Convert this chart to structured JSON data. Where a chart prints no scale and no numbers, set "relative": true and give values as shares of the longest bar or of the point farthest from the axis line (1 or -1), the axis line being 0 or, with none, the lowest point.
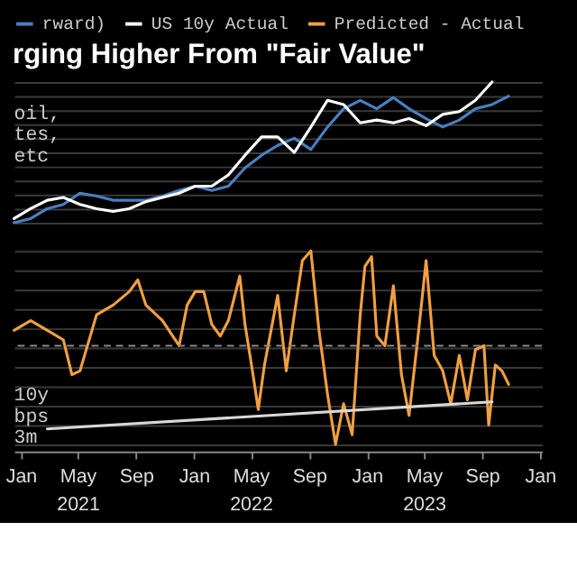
{
  "chart_data": [
    {
      "type": "line",
      "title": "rging Higher From \"Fair Value\"",
      "relative": true,
      "legend": "top",
      "grid": "y",
      "tick_labels": false,
      "xlim": [
        "2020-12-18",
        "2024-01-05"
      ],
      "x": [
        "2020-12-18",
        "2021-01-22",
        "2021-02-26",
        "2021-04-01",
        "2021-05-06",
        "2021-06-10",
        "2021-07-15",
        "2021-08-18",
        "2021-09-22",
        "2021-10-27",
        "2021-12-01",
        "2022-01-04",
        "2022-02-08",
        "2022-03-15",
        "2022-04-19",
        "2022-05-24",
        "2022-06-27",
        "2022-08-01",
        "2022-09-05",
        "2022-10-10",
        "2022-11-13",
        "2022-12-18",
        "2023-01-22",
        "2023-02-26",
        "2023-03-31",
        "2023-05-06",
        "2023-06-10",
        "2023-07-15",
        "2023-08-18",
        "2023-09-22",
        "2023-10-27"
      ],
      "series": [
        {
          "name": "rward)",
          "color": "#4a7fc1",
          "values": [
            0,
            0.03,
            0.1,
            0.13,
            0.21,
            0.19,
            0.16,
            0.16,
            0.16,
            0.19,
            0.23,
            0.26,
            0.23,
            0.26,
            0.39,
            0.48,
            0.55,
            0.6,
            0.52,
            0.68,
            0.81,
            0.87,
            0.81,
            0.89,
            0.81,
            0.74,
            0.68,
            0.73,
            0.81,
            0.84,
            0.9
          ]
        },
        {
          "name": "US 10y Actual",
          "color": "#ffffff",
          "values": [
            0.03,
            0.1,
            0.16,
            0.18,
            0.13,
            0.1,
            0.08,
            0.1,
            0.15,
            0.18,
            0.21,
            0.26,
            0.26,
            0.34,
            0.48,
            0.61,
            0.61,
            0.5,
            0.68,
            0.87,
            0.84,
            0.71,
            0.73,
            0.71,
            0.74,
            0.69,
            0.77,
            0.79,
            0.87,
            1.0,
            null
          ]
        }
      ],
      "annotations": [
        "oil,",
        "tes,",
        "etc"
      ]
    },
    {
      "type": "line",
      "relative": true,
      "legend": "top",
      "grid": "y",
      "tick_labels": "x",
      "xlim": [
        "2020-12-18",
        "2024-01-05"
      ],
      "xticks": [
        {
          "value": "2021-01-01",
          "label": "Jan"
        },
        {
          "value": "2021-05-01",
          "label": "May\n2021"
        },
        {
          "value": "2021-09-01",
          "label": "Sep"
        },
        {
          "value": "2022-01-01",
          "label": "Jan"
        },
        {
          "value": "2022-05-01",
          "label": "May\n2022"
        },
        {
          "value": "2022-09-01",
          "label": "Sep"
        },
        {
          "value": "2023-01-01",
          "label": "Jan"
        },
        {
          "value": "2023-05-01",
          "label": "May\n2023"
        },
        {
          "value": "2023-09-01",
          "label": "Sep"
        },
        {
          "value": "2024-01-01",
          "label": "Jan"
        }
      ],
      "x": [
        "2020-12-18",
        "2021-01-22",
        "2021-02-26",
        "2021-04-01",
        "2021-04-19",
        "2021-05-06",
        "2021-06-10",
        "2021-07-15",
        "2021-08-18",
        "2021-09-05",
        "2021-09-22",
        "2021-10-27",
        "2021-12-01",
        "2021-12-18",
        "2022-01-04",
        "2022-01-22",
        "2022-02-08",
        "2022-02-26",
        "2022-03-15",
        "2022-04-08",
        "2022-04-19",
        "2022-05-06",
        "2022-05-17",
        "2022-05-30",
        "2022-06-27",
        "2022-07-15",
        "2022-08-01",
        "2022-08-18",
        "2022-09-05",
        "2022-09-22",
        "2022-10-10",
        "2022-10-27",
        "2022-11-13",
        "2022-12-01",
        "2022-12-18",
        "2022-12-28",
        "2023-01-11",
        "2023-01-22",
        "2023-02-08",
        "2023-02-26",
        "2023-03-15",
        "2023-03-31",
        "2023-04-19",
        "2023-05-06",
        "2023-05-23",
        "2023-06-10",
        "2023-06-27",
        "2023-07-15",
        "2023-08-01",
        "2023-08-18",
        "2023-09-05",
        "2023-09-15",
        "2023-09-29",
        "2023-10-13",
        "2023-10-27"
      ],
      "series": [
        {
          "name": "Predicted - Actual",
          "color": "#f0a040",
          "values": [
            0.59,
            0.64,
            0.59,
            0.54,
            0.36,
            0.38,
            0.67,
            0.72,
            0.79,
            0.85,
            0.72,
            0.64,
            0.51,
            0.72,
            0.79,
            0.79,
            0.62,
            0.56,
            0.64,
            0.87,
            0.62,
            0.36,
            0.18,
            0.41,
            0.77,
            0.38,
            0.67,
            0.95,
            1.0,
            0.59,
            0.26,
            0,
            0.21,
            0.05,
            0.67,
            0.92,
            0.97,
            0.56,
            0.51,
            0.82,
            0.36,
            0.15,
            0.56,
            0.95,
            0.46,
            0.38,
            0.21,
            0.46,
            0.23,
            0.49,
            0.51,
            0.1,
            0.41,
            0.38,
            0.31
          ]
        },
        {
          "type": "line",
          "color": "#d8d8d8",
          "x": [
            "2021-02-26",
            "2023-09-22"
          ],
          "values": [
            0.08,
            0.22
          ]
        }
      ],
      "ref_lines": [
        {
          "axis": "y",
          "value": 0.51,
          "color": "#888888",
          "line_style": "dashed"
        }
      ],
      "annotations": [
        "10y",
        "bps",
        "3m"
      ]
    }
  ]
}
